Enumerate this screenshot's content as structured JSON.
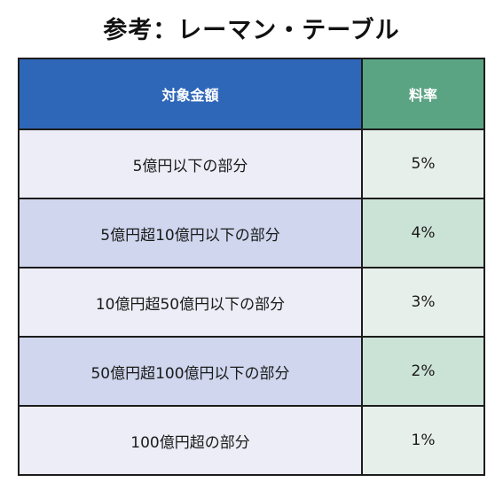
{
  "title": "参考：レーマン・テーブル",
  "colors": {
    "header_amount_bg": "#2f67b8",
    "header_rate_bg": "#5aa383",
    "row_light_amount": "#ecedf6",
    "row_dark_amount": "#cfd6ee",
    "row_light_rate": "#e7efea",
    "row_dark_rate": "#cbe2d6"
  },
  "table": {
    "headers": {
      "amount": "対象金額",
      "rate": "料率"
    },
    "rows": [
      {
        "amount": "5億円以下の部分",
        "rate": "5%"
      },
      {
        "amount": "5億円超10億円以下の部分",
        "rate": "4%"
      },
      {
        "amount": "10億円超50億円以下の部分",
        "rate": "3%"
      },
      {
        "amount": "50億円超100億円以下の部分",
        "rate": "2%"
      },
      {
        "amount": "100億円超の部分",
        "rate": "1%"
      }
    ]
  }
}
